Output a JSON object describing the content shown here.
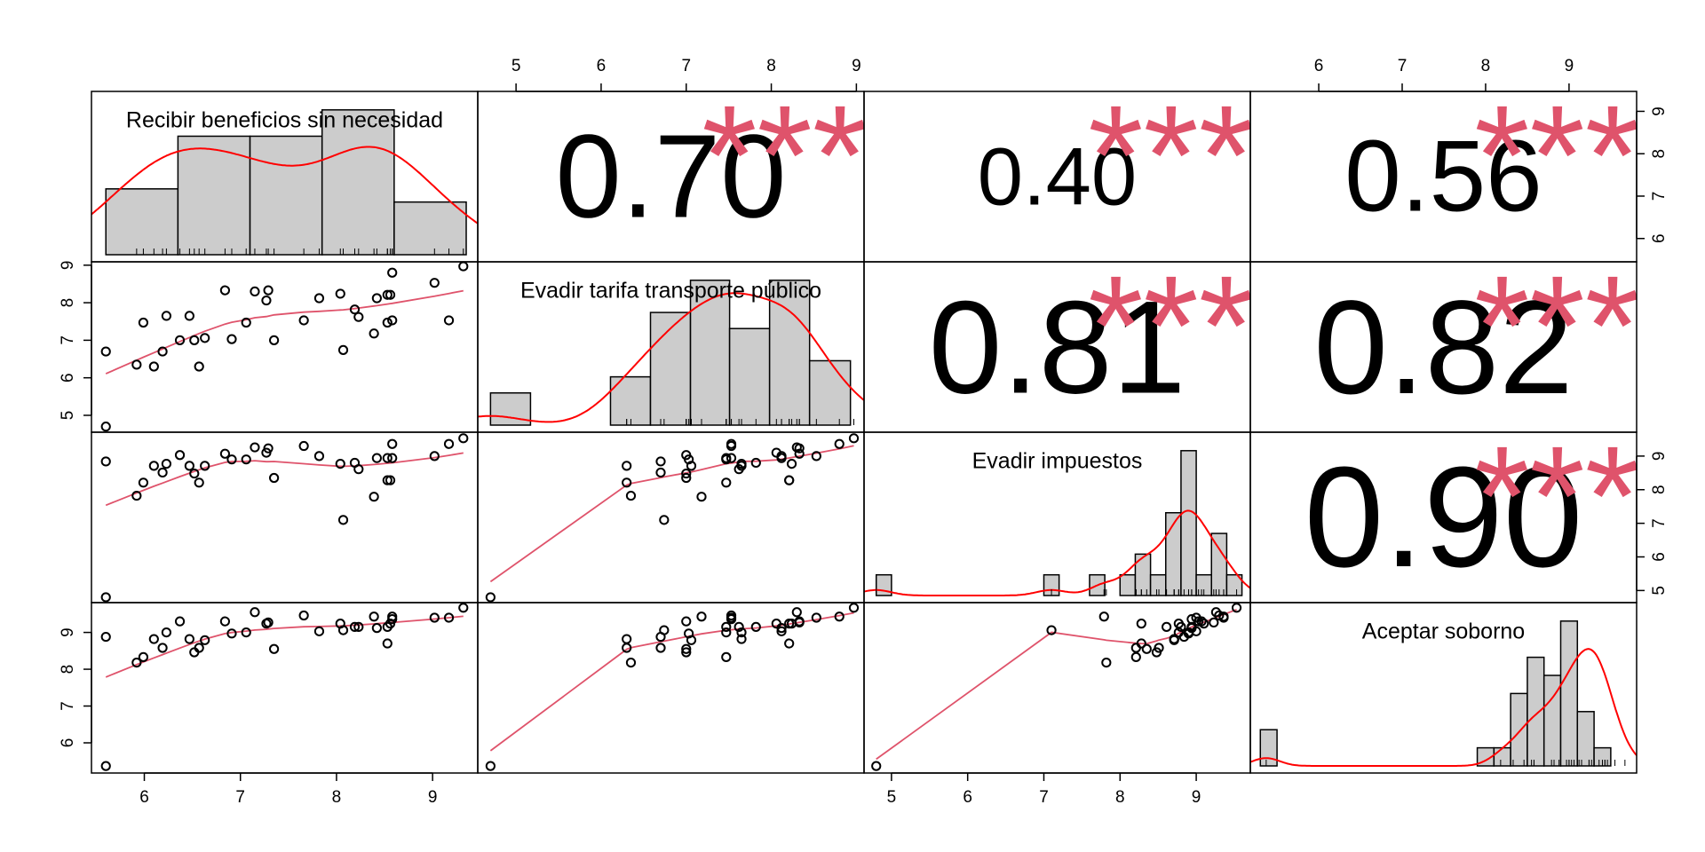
{
  "chart_data": {
    "type": "scatter-matrix",
    "hist_color": "#cccccc",
    "density_color": "#ff0000",
    "fit_color": "#df536b",
    "star_color": "#df536b",
    "variables": [
      {
        "name": "Recibir beneficios sin necesidad",
        "values": [
          5.6,
          5.6,
          5.92,
          5.99,
          6.1,
          6.19,
          6.23,
          6.37,
          6.47,
          6.52,
          6.57,
          6.63,
          6.84,
          6.91,
          7.06,
          7.15,
          7.27,
          7.29,
          7.35,
          7.66,
          7.82,
          8.04,
          8.07,
          8.19,
          8.23,
          8.39,
          8.42,
          8.53,
          8.53,
          8.56,
          8.58,
          8.58,
          9.02,
          9.17,
          9.32
        ],
        "lim": [
          5.45,
          9.47
        ],
        "ticks": [
          6,
          7,
          8,
          9
        ],
        "hist": {
          "bins": [
            5.6,
            6.35,
            7.1,
            7.85,
            8.6,
            9.35
          ],
          "counts": [
            5,
            9,
            9,
            11,
            4
          ]
        }
      },
      {
        "name": "Evadir tarifa transporte público",
        "values": [
          6.7,
          4.7,
          6.35,
          7.47,
          6.3,
          6.7,
          7.65,
          7.0,
          7.65,
          7.0,
          6.3,
          7.06,
          8.33,
          7.03,
          7.47,
          8.3,
          8.06,
          8.33,
          7.0,
          7.53,
          8.12,
          8.24,
          6.74,
          7.82,
          7.62,
          7.18,
          8.12,
          8.21,
          7.47,
          8.21,
          8.8,
          7.53,
          8.53,
          7.53,
          8.97
        ],
        "lim": [
          4.55,
          9.09
        ],
        "ticks": [
          5,
          6,
          7,
          8,
          9
        ],
        "hist": {
          "bins": [
            4.7,
            5.17,
            5.64,
            6.11,
            6.58,
            7.05,
            7.51,
            7.98,
            8.45,
            8.93
          ],
          "counts": [
            2,
            0,
            0,
            3,
            7,
            9,
            6,
            9,
            4
          ]
        }
      },
      {
        "name": "Evadir impuestos",
        "values": [
          8.84,
          4.8,
          7.82,
          8.21,
          8.71,
          8.51,
          8.77,
          9.03,
          8.71,
          8.48,
          8.21,
          8.71,
          9.07,
          8.9,
          8.9,
          9.26,
          9.1,
          9.23,
          8.35,
          9.3,
          9.0,
          8.77,
          7.1,
          8.8,
          8.61,
          7.79,
          8.94,
          8.28,
          8.94,
          8.28,
          9.36,
          8.94,
          9.0,
          9.36,
          9.53
        ],
        "lim": [
          4.64,
          9.71
        ],
        "ticks": [
          5,
          6,
          7,
          8,
          9
        ],
        "hist": {
          "bins": [
            4.8,
            5.0,
            5.2,
            5.4,
            5.6,
            5.8,
            6.0,
            6.2,
            6.4,
            6.6,
            6.8,
            7.0,
            7.2,
            7.4,
            7.6,
            7.8,
            8.0,
            8.2,
            8.4,
            8.6,
            8.8,
            9.0,
            9.2,
            9.4,
            9.6
          ],
          "counts": [
            1,
            0,
            0,
            0,
            0,
            0,
            0,
            0,
            0,
            0,
            0,
            1,
            0,
            0,
            1,
            0,
            1,
            2,
            1,
            4,
            7,
            1,
            3,
            1
          ]
        }
      },
      {
        "name": "Aceptar soborno",
        "values": [
          8.88,
          5.37,
          8.18,
          8.33,
          8.82,
          8.58,
          9.0,
          9.3,
          8.82,
          8.46,
          8.58,
          8.79,
          9.3,
          8.97,
          9.0,
          9.55,
          9.24,
          9.27,
          8.55,
          9.46,
          9.03,
          9.24,
          9.06,
          9.15,
          9.15,
          9.43,
          9.12,
          8.7,
          9.15,
          9.24,
          9.43,
          9.36,
          9.4,
          9.4,
          9.67
        ],
        "lim": [
          5.18,
          9.81
        ],
        "ticks": [
          6,
          7,
          8,
          9
        ],
        "hist": {
          "bins": [
            5.3,
            5.5,
            5.7,
            5.9,
            6.1,
            6.3,
            6.5,
            6.7,
            6.9,
            7.1,
            7.3,
            7.5,
            7.7,
            7.9,
            8.1,
            8.3,
            8.5,
            8.7,
            8.9,
            9.1,
            9.3,
            9.5,
            9.7
          ],
          "counts": [
            2,
            0,
            0,
            0,
            0,
            0,
            0,
            0,
            0,
            0,
            0,
            0,
            0,
            1,
            1,
            4,
            6,
            5,
            8,
            3,
            1,
            0
          ]
        }
      }
    ],
    "correlations": {
      "values": [
        0.7,
        0.4,
        0.56,
        0.81,
        0.82,
        0.9
      ],
      "value_labels": [
        "0.70",
        "0.40",
        "0.56",
        "0.81",
        "0.82",
        "0.90"
      ],
      "stars": [
        "***",
        "***",
        "***",
        "***",
        "***",
        "***"
      ]
    }
  }
}
